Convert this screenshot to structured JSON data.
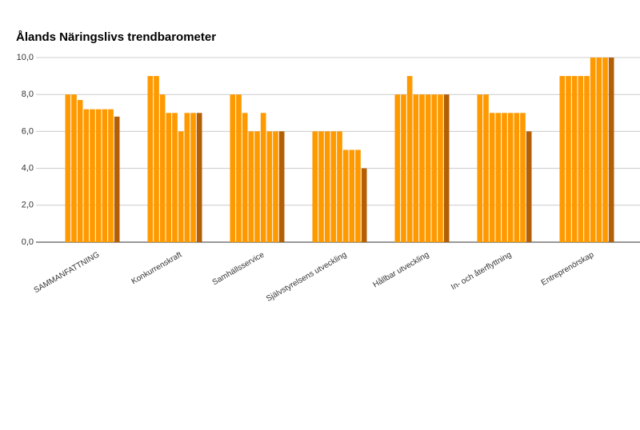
{
  "chart_data": {
    "type": "bar",
    "title": "Ålands Näringslivs trendbarometer",
    "categories": [
      "SAMMANFATTNING",
      "Konkurrenskraft",
      "Samhällsservice",
      "Självstyrelsens utveckling",
      "Hållbar utveckling",
      "In- och återflyttning",
      "Entreprenörskap"
    ],
    "series": [
      {
        "color": "#ff9900",
        "values": [
          8,
          9,
          8,
          6,
          8,
          8,
          9
        ]
      },
      {
        "color": "#ff9900",
        "values": [
          8,
          9,
          8,
          6,
          8,
          8,
          9
        ]
      },
      {
        "color": "#ff9900",
        "values": [
          7.7,
          8,
          7,
          6,
          9,
          7,
          9
        ]
      },
      {
        "color": "#ff9900",
        "values": [
          7.2,
          7,
          6,
          6,
          8,
          7,
          9
        ]
      },
      {
        "color": "#ff9900",
        "values": [
          7.2,
          7,
          6,
          6,
          8,
          7,
          9
        ]
      },
      {
        "color": "#ff9900",
        "values": [
          7.2,
          6,
          7,
          5,
          8,
          7,
          10
        ]
      },
      {
        "color": "#ff9900",
        "values": [
          7.2,
          7,
          6,
          5,
          8,
          7,
          10
        ]
      },
      {
        "color": "#ff9900",
        "values": [
          7.2,
          7,
          6,
          5,
          8,
          7,
          10
        ]
      },
      {
        "color": "#b45f06",
        "values": [
          6.8,
          7,
          6,
          4,
          8,
          6,
          10
        ]
      }
    ],
    "ylim": [
      0,
      10
    ],
    "yticks": [
      {
        "value": 0,
        "label": "0,0"
      },
      {
        "value": 2,
        "label": "2,0"
      },
      {
        "value": 4,
        "label": "4,0"
      },
      {
        "value": 6,
        "label": "6,0"
      },
      {
        "value": 8,
        "label": "8,0"
      },
      {
        "value": 10,
        "label": "10,0"
      }
    ],
    "grid": true
  }
}
